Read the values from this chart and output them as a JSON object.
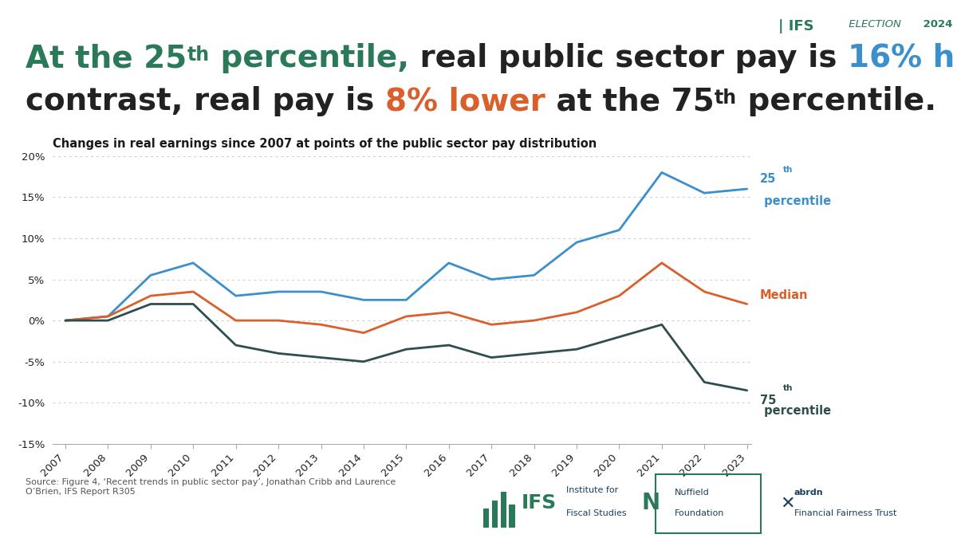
{
  "years": [
    2007,
    2008,
    2009,
    2010,
    2011,
    2012,
    2013,
    2014,
    2015,
    2016,
    2017,
    2018,
    2019,
    2020,
    2021,
    2022,
    2023
  ],
  "p25": [
    0.0,
    0.5,
    5.5,
    7.0,
    3.0,
    3.5,
    3.5,
    2.5,
    2.5,
    7.0,
    5.0,
    5.5,
    9.5,
    11.0,
    18.0,
    15.5,
    16.0
  ],
  "median": [
    0.0,
    0.5,
    3.0,
    3.5,
    0.0,
    0.0,
    -0.5,
    -1.5,
    0.5,
    1.0,
    -0.5,
    0.0,
    1.0,
    3.0,
    7.0,
    3.5,
    2.0
  ],
  "p75": [
    0.0,
    0.0,
    2.0,
    2.0,
    -3.0,
    -4.0,
    -4.5,
    -5.0,
    -3.5,
    -3.0,
    -4.5,
    -4.0,
    -3.5,
    -2.0,
    -0.5,
    -7.5,
    -8.5
  ],
  "colors": {
    "p25": "#3B8FCC",
    "median": "#D95F2B",
    "p75": "#2E4E4E",
    "background": "#FFFFFF",
    "teal": "#2A7A5A",
    "blue_hl": "#3B8FCC",
    "orange_hl": "#D95F2B",
    "dark_text": "#222222",
    "grid": "#CCCCCC",
    "axis": "#AAAAAA"
  },
  "chart_title": "Changes in real earnings since 2007 at points of the public sector pay distribution",
  "source_text": "Source: Figure 4, ‘Recent trends in public sector pay’, Jonathan Cribb and Laurence\nO’Brien, IFS Report R305",
  "ylim": [
    -0.15,
    0.2
  ],
  "yticks": [
    -0.15,
    -0.1,
    -0.05,
    0.0,
    0.05,
    0.1,
    0.15,
    0.2
  ],
  "headline_fs": 28,
  "sup_fs": 17,
  "chart_label_fs": 10.5
}
